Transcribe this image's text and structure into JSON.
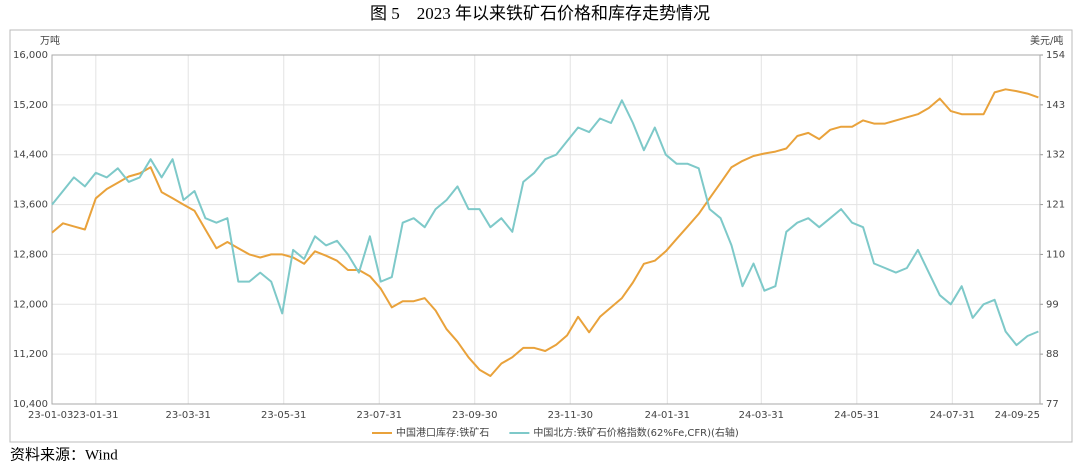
{
  "chart_data": {
    "type": "line",
    "title": "图 5　2023 年以来铁矿石价格和库存走势情况",
    "y_label": "万吨",
    "y2_label": "美元/吨",
    "source": "资料来源：Wind",
    "grid": true,
    "legend": "bottom",
    "x": [
      "23-01-03",
      "23-01-10",
      "23-01-17",
      "23-01-24",
      "23-01-31",
      "23-02-07",
      "23-02-14",
      "23-02-21",
      "23-02-28",
      "23-03-07",
      "23-03-14",
      "23-03-21",
      "23-03-28",
      "23-04-04",
      "23-04-11",
      "23-04-18",
      "23-04-25",
      "23-05-02",
      "23-05-09",
      "23-05-16",
      "23-05-23",
      "23-05-30",
      "23-06-06",
      "23-06-13",
      "23-06-20",
      "23-06-27",
      "23-07-04",
      "23-07-11",
      "23-07-18",
      "23-07-25",
      "23-08-01",
      "23-08-08",
      "23-08-15",
      "23-08-22",
      "23-08-29",
      "23-09-05",
      "23-09-12",
      "23-09-19",
      "23-09-26",
      "23-10-03",
      "23-10-10",
      "23-10-17",
      "23-10-24",
      "23-10-31",
      "23-11-07",
      "23-11-14",
      "23-11-21",
      "23-11-28",
      "23-12-05",
      "23-12-12",
      "23-12-19",
      "23-12-26",
      "24-01-02",
      "24-01-09",
      "24-01-16",
      "24-01-23",
      "24-01-30",
      "24-02-06",
      "24-02-13",
      "24-02-20",
      "24-02-27",
      "24-03-05",
      "24-03-12",
      "24-03-19",
      "24-03-26",
      "24-04-02",
      "24-04-09",
      "24-04-16",
      "24-04-23",
      "24-04-30",
      "24-05-07",
      "24-05-14",
      "24-05-21",
      "24-05-28",
      "24-06-04",
      "24-06-11",
      "24-06-18",
      "24-06-25",
      "24-07-02",
      "24-07-09",
      "24-07-16",
      "24-07-23",
      "24-07-30",
      "24-08-06",
      "24-08-13",
      "24-08-20",
      "24-08-27",
      "24-09-03",
      "24-09-10",
      "24-09-17",
      "24-09-24"
    ],
    "series": [
      {
        "name": "中国港口库存:铁矿石",
        "color": "#e9a23b",
        "axis": "y",
        "values": [
          13150,
          13300,
          13250,
          13200,
          13700,
          13850,
          13950,
          14050,
          14100,
          14200,
          13800,
          13700,
          13600,
          13500,
          13200,
          12900,
          13000,
          12900,
          12800,
          12750,
          12800,
          12800,
          12750,
          12650,
          12850,
          12780,
          12700,
          12550,
          12550,
          12450,
          12250,
          11950,
          12050,
          12050,
          12100,
          11900,
          11600,
          11400,
          11150,
          10950,
          10850,
          11050,
          11150,
          11300,
          11300,
          11250,
          11350,
          11500,
          11800,
          11550,
          11800,
          11950,
          12100,
          12350,
          12650,
          12700,
          12850,
          13050,
          13250,
          13450,
          13700,
          13950,
          14200,
          14300,
          14380,
          14420,
          14450,
          14500,
          14700,
          14750,
          14650,
          14800,
          14850,
          14850,
          14950,
          14900,
          14900,
          14950,
          15000,
          15050,
          15150,
          15300,
          15100,
          15050,
          15050,
          15050,
          15400,
          15450,
          15420,
          15380,
          15320
        ]
      },
      {
        "name": "中国北方:铁矿石价格指数(62%Fe,CFR)(右轴)",
        "color": "#7ec9c9",
        "axis": "y2",
        "values": [
          121,
          124,
          127,
          125,
          128,
          127,
          129,
          126,
          127,
          131,
          127,
          131,
          122,
          124,
          118,
          117,
          118,
          104,
          104,
          106,
          104,
          97,
          111,
          109,
          114,
          112,
          113,
          110,
          106,
          114,
          104,
          105,
          117,
          118,
          116,
          120,
          122,
          125,
          120,
          120,
          116,
          118,
          115,
          126,
          128,
          131,
          132,
          135,
          138,
          137,
          140,
          139,
          144,
          139,
          133,
          138,
          132,
          130,
          130,
          129,
          120,
          118,
          112,
          103,
          108,
          102,
          103,
          115,
          117,
          118,
          116,
          118,
          120,
          117,
          116,
          108,
          107,
          106,
          107,
          111,
          106,
          101,
          99,
          103,
          96,
          99,
          100,
          93,
          90,
          92,
          93
        ]
      }
    ],
    "xticks": [
      "23-01-03",
      "23-01-31",
      "23-03-31",
      "23-05-31",
      "23-07-31",
      "23-09-30",
      "23-11-30",
      "24-01-31",
      "24-03-31",
      "24-05-31",
      "24-07-31",
      "24-09-25"
    ],
    "ylim": [
      10400,
      16000
    ],
    "yticks": [
      {
        "value": 10400,
        "label": "10,400"
      },
      {
        "value": 11200,
        "label": "11,200"
      },
      {
        "value": 12000,
        "label": "12,000"
      },
      {
        "value": 12800,
        "label": "12,800"
      },
      {
        "value": 13600,
        "label": "13,600"
      },
      {
        "value": 14400,
        "label": "14,400"
      },
      {
        "value": 15200,
        "label": "15,200"
      },
      {
        "value": 16000,
        "label": "16,000"
      }
    ],
    "y2lim": [
      77,
      154
    ],
    "y2ticks": [
      77,
      88,
      99,
      110,
      121,
      132,
      143,
      154
    ]
  }
}
